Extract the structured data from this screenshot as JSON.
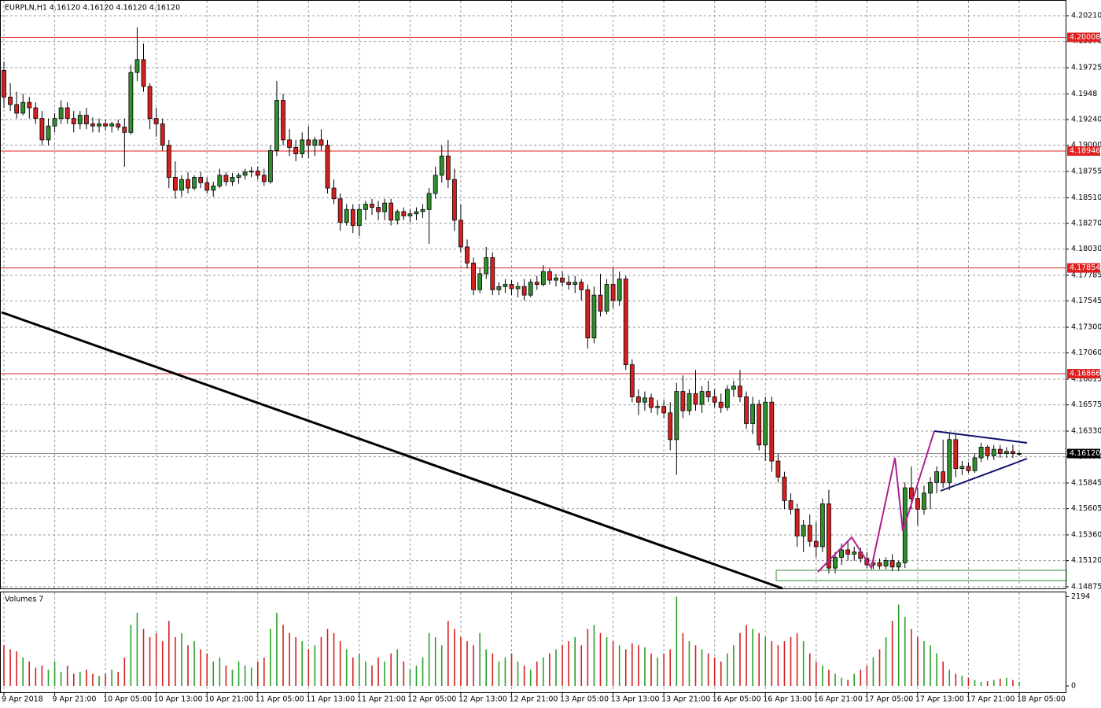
{
  "chart_data": {
    "type": "candlestick",
    "header": "EURPLN,H1  4.16120 4.16120 4.16120 4.16120",
    "up_color": "#2f8f2f",
    "down_color": "#d42020",
    "grid": true,
    "ylim": [
      4.1486,
      4.20357
    ],
    "yticks": [
      {
        "value": 4.2021,
        "label": "4.20210"
      },
      {
        "value": 4.1997,
        "label": "4.19970"
      },
      4.19725,
      4.1948,
      {
        "value": 4.1924,
        "label": "4.19240"
      },
      {
        "value": 4.19,
        "label": "4.19000"
      },
      4.18755,
      {
        "value": 4.1851,
        "label": "4.18510"
      },
      {
        "value": 4.1827,
        "label": "4.18270"
      },
      {
        "value": 4.1803,
        "label": "4.18030"
      },
      4.17785,
      4.17545,
      {
        "value": 4.173,
        "label": "4.17300"
      },
      {
        "value": 4.1706,
        "label": "4.17060"
      },
      4.16815,
      4.16575,
      {
        "value": 4.1633,
        "label": "4.16330"
      },
      {
        "value": 4.1609,
        "label": "4.16090"
      },
      4.15845,
      4.15605,
      {
        "value": 4.1536,
        "label": "4.15360"
      },
      {
        "value": 4.1512,
        "label": "4.15120"
      },
      4.14875
    ],
    "levels": [
      4.20008,
      4.18946,
      4.17854,
      4.16866
    ],
    "level_color": "#e02020",
    "current": {
      "value": 4.1612,
      "label": "4.16120"
    },
    "categories": [
      "9 Apr 2018",
      null,
      null,
      null,
      null,
      null,
      null,
      null,
      "9 Apr 21:00",
      null,
      null,
      null,
      null,
      null,
      null,
      null,
      "10 Apr 05:00",
      null,
      null,
      null,
      null,
      null,
      null,
      null,
      "10 Apr 13:00",
      null,
      null,
      null,
      null,
      null,
      null,
      null,
      "10 Apr 21:00",
      null,
      null,
      null,
      null,
      null,
      null,
      null,
      "11 Apr 05:00",
      null,
      null,
      null,
      null,
      null,
      null,
      null,
      "11 Apr 13:00",
      null,
      null,
      null,
      null,
      null,
      null,
      null,
      "11 Apr 21:00",
      null,
      null,
      null,
      null,
      null,
      null,
      null,
      "12 Apr 05:00",
      null,
      null,
      null,
      null,
      null,
      null,
      null,
      "12 Apr 13:00",
      null,
      null,
      null,
      null,
      null,
      null,
      null,
      "12 Apr 21:00",
      null,
      null,
      null,
      null,
      null,
      null,
      null,
      "13 Apr 05:00",
      null,
      null,
      null,
      null,
      null,
      null,
      null,
      "13 Apr 13:00",
      null,
      null,
      null,
      null,
      null,
      null,
      null,
      "13 Apr 21:00",
      null,
      null,
      null,
      null,
      null,
      null,
      null,
      "16 Apr 05:00",
      null,
      null,
      null,
      null,
      null,
      null,
      null,
      "16 Apr 13:00",
      null,
      null,
      null,
      null,
      null,
      null,
      null,
      "16 Apr 21:00",
      null,
      null,
      null,
      null,
      null,
      null,
      null,
      "17 Apr 05:00",
      null,
      null,
      null,
      null,
      null,
      null,
      null,
      "17 Apr 13:00",
      null,
      null,
      null,
      null,
      null,
      null,
      null,
      "17 Apr 21:00",
      null,
      null,
      null,
      null,
      null,
      null,
      null,
      "18 Apr 05:00"
    ],
    "ohlc": [
      [
        4.197,
        4.1978,
        4.1935,
        4.1945
      ],
      [
        4.1945,
        4.1958,
        4.1932,
        4.1938
      ],
      [
        4.1938,
        4.195,
        4.1925,
        4.193
      ],
      [
        4.193,
        4.1948,
        4.1928,
        4.194
      ],
      [
        4.194,
        4.1945,
        4.1925,
        4.1935
      ],
      [
        4.1935,
        4.194,
        4.192,
        4.1925
      ],
      [
        4.1925,
        4.1932,
        4.19,
        4.1905
      ],
      [
        4.1905,
        4.1925,
        4.19,
        4.1918
      ],
      [
        4.1918,
        4.193,
        4.1912,
        4.1925
      ],
      [
        4.1925,
        4.1942,
        4.192,
        4.1935
      ],
      [
        4.1935,
        4.194,
        4.192,
        4.1925
      ],
      [
        4.1925,
        4.1932,
        4.1912,
        4.192
      ],
      [
        4.192,
        4.1932,
        4.1915,
        4.1928
      ],
      [
        4.1928,
        4.1935,
        4.1915,
        4.192
      ],
      [
        4.192,
        4.1926,
        4.1912,
        4.1918
      ],
      [
        4.1918,
        4.1925,
        4.1912,
        4.192
      ],
      [
        4.192,
        4.1924,
        4.1914,
        4.1918
      ],
      [
        4.1918,
        4.1922,
        4.1912,
        4.192
      ],
      [
        4.192,
        4.1924,
        4.1914,
        4.1917
      ],
      [
        4.1917,
        4.1925,
        4.188,
        4.1912
      ],
      [
        4.1912,
        4.1975,
        4.191,
        4.1968
      ],
      [
        4.1968,
        4.201,
        4.196,
        4.198
      ],
      [
        4.198,
        4.1995,
        4.195,
        4.1955
      ],
      [
        4.1955,
        4.1958,
        4.1915,
        4.1925
      ],
      [
        4.1925,
        4.1935,
        4.1908,
        4.192
      ],
      [
        4.192,
        4.1925,
        4.1895,
        4.19
      ],
      [
        4.19,
        4.1905,
        4.186,
        4.187
      ],
      [
        4.187,
        4.1885,
        4.185,
        4.1858
      ],
      [
        4.1858,
        4.1872,
        4.1852,
        4.1868
      ],
      [
        4.1868,
        4.1875,
        4.1855,
        4.186
      ],
      [
        4.186,
        4.1872,
        4.1858,
        4.187
      ],
      [
        4.187,
        4.1875,
        4.186,
        4.1865
      ],
      [
        4.1865,
        4.187,
        4.1855,
        4.1858
      ],
      [
        4.1858,
        4.1866,
        4.1852,
        4.1862
      ],
      [
        4.1862,
        4.1878,
        4.186,
        4.1872
      ],
      [
        4.1872,
        4.1875,
        4.1862,
        4.1866
      ],
      [
        4.1866,
        4.1874,
        4.1862,
        4.187
      ],
      [
        4.187,
        4.1874,
        4.1864,
        4.1872
      ],
      [
        4.1872,
        4.1878,
        4.1868,
        4.1875
      ],
      [
        4.1875,
        4.188,
        4.187,
        4.1876
      ],
      [
        4.1876,
        4.188,
        4.1868,
        4.1872
      ],
      [
        4.1872,
        4.1878,
        4.1862,
        4.1866
      ],
      [
        4.1866,
        4.19,
        4.1864,
        4.1895
      ],
      [
        4.1895,
        4.196,
        4.189,
        4.1942
      ],
      [
        4.1942,
        4.1948,
        4.19,
        4.1905
      ],
      [
        4.1905,
        4.1915,
        4.189,
        4.1898
      ],
      [
        4.1898,
        4.1905,
        4.1885,
        4.1892
      ],
      [
        4.1892,
        4.1912,
        4.1888,
        4.1905
      ],
      [
        4.1905,
        4.1918,
        4.1888,
        4.19
      ],
      [
        4.19,
        4.1908,
        4.189,
        4.1905
      ],
      [
        4.1905,
        4.1915,
        4.1895,
        4.19
      ],
      [
        4.19,
        4.1905,
        4.1855,
        4.186
      ],
      [
        4.186,
        4.1868,
        4.1845,
        4.185
      ],
      [
        4.185,
        4.1855,
        4.182,
        4.1828
      ],
      [
        4.1828,
        4.1845,
        4.1825,
        4.184
      ],
      [
        4.184,
        4.1845,
        4.1818,
        4.1825
      ],
      [
        4.1825,
        4.1845,
        4.1815,
        4.184
      ],
      [
        4.184,
        4.1848,
        4.183,
        4.1845
      ],
      [
        4.1845,
        4.185,
        4.1835,
        4.1842
      ],
      [
        4.1842,
        4.1848,
        4.183,
        4.1838
      ],
      [
        4.1838,
        4.185,
        4.183,
        4.1846
      ],
      [
        4.1846,
        4.185,
        4.1825,
        4.183
      ],
      [
        4.183,
        4.184,
        4.1826,
        4.1838
      ],
      [
        4.1838,
        4.1842,
        4.183,
        4.1834
      ],
      [
        4.1834,
        4.184,
        4.1828,
        4.1836
      ],
      [
        4.1836,
        4.1842,
        4.183,
        4.1838
      ],
      [
        4.1838,
        4.1845,
        4.1832,
        4.184
      ],
      [
        4.184,
        4.186,
        4.1808,
        4.1855
      ],
      [
        4.1855,
        4.188,
        4.185,
        4.1872
      ],
      [
        4.1872,
        4.19,
        4.1865,
        4.189
      ],
      [
        4.189,
        4.1905,
        4.186,
        4.1868
      ],
      [
        4.1868,
        4.1878,
        4.182,
        4.183
      ],
      [
        4.183,
        4.1845,
        4.18,
        4.1805
      ],
      [
        4.1805,
        4.1812,
        4.1785,
        4.179
      ],
      [
        4.179,
        4.1795,
        4.176,
        4.1765
      ],
      [
        4.1765,
        4.1785,
        4.1762,
        4.178
      ],
      [
        4.178,
        4.1805,
        4.1775,
        4.1795
      ],
      [
        4.1795,
        4.18,
        4.176,
        4.1765
      ],
      [
        4.1765,
        4.1772,
        4.176,
        4.1768
      ],
      [
        4.1768,
        4.1775,
        4.1762,
        4.177
      ],
      [
        4.177,
        4.1774,
        4.176,
        4.1766
      ],
      [
        4.1766,
        4.1772,
        4.1758,
        4.1768
      ],
      [
        4.1768,
        4.1775,
        4.1755,
        4.176
      ],
      [
        4.176,
        4.1775,
        4.1758,
        4.1772
      ],
      [
        4.1772,
        4.1778,
        4.1765,
        4.177
      ],
      [
        4.177,
        4.1788,
        4.1768,
        4.1782
      ],
      [
        4.1782,
        4.1785,
        4.177,
        4.1774
      ],
      [
        4.1774,
        4.178,
        4.1768,
        4.1776
      ],
      [
        4.1776,
        4.1782,
        4.1768,
        4.1772
      ],
      [
        4.1772,
        4.1778,
        4.1765,
        4.177
      ],
      [
        4.177,
        4.1778,
        4.1762,
        4.1772
      ],
      [
        4.1772,
        4.1775,
        4.1755,
        4.1765
      ],
      [
        4.1765,
        4.177,
        4.171,
        4.172
      ],
      [
        4.172,
        4.1768,
        4.1715,
        4.176
      ],
      [
        4.176,
        4.178,
        4.174,
        4.1745
      ],
      [
        4.1745,
        4.1775,
        4.1742,
        4.177
      ],
      [
        4.177,
        4.1785,
        4.1748,
        4.1755
      ],
      [
        4.1755,
        4.1782,
        4.175,
        4.1775
      ],
      [
        4.1775,
        4.1778,
        4.169,
        4.1695
      ],
      [
        4.1695,
        4.17,
        4.166,
        4.1665
      ],
      [
        4.1665,
        4.1672,
        4.1648,
        4.166
      ],
      [
        4.166,
        4.167,
        4.1652,
        4.1664
      ],
      [
        4.1664,
        4.1668,
        4.165,
        4.1655
      ],
      [
        4.1655,
        4.1662,
        4.1648,
        4.1656
      ],
      [
        4.1656,
        4.1662,
        4.1645,
        4.165
      ],
      [
        4.165,
        4.166,
        4.1615,
        4.1625
      ],
      [
        4.1625,
        4.1678,
        4.1592,
        4.167
      ],
      [
        4.167,
        4.1685,
        4.1645,
        4.1652
      ],
      [
        4.1652,
        4.1672,
        4.1648,
        4.1668
      ],
      [
        4.1668,
        4.169,
        4.1652,
        4.1658
      ],
      [
        4.1658,
        4.1675,
        4.165,
        4.167
      ],
      [
        4.167,
        4.168,
        4.166,
        4.1665
      ],
      [
        4.1665,
        4.1672,
        4.1655,
        4.166
      ],
      [
        4.166,
        4.1668,
        4.165,
        4.1655
      ],
      [
        4.1655,
        4.1676,
        4.1652,
        4.1672
      ],
      [
        4.1672,
        4.168,
        4.1665,
        4.1675
      ],
      [
        4.1675,
        4.169,
        4.166,
        4.1665
      ],
      [
        4.1665,
        4.167,
        4.1635,
        4.164
      ],
      [
        4.164,
        4.1665,
        4.163,
        4.1658
      ],
      [
        4.1658,
        4.1662,
        4.1615,
        4.162
      ],
      [
        4.162,
        4.1665,
        4.1605,
        4.166
      ],
      [
        4.166,
        4.1665,
        4.1595,
        4.1605
      ],
      [
        4.1605,
        4.1612,
        4.1585,
        4.159
      ],
      [
        4.159,
        4.1595,
        4.156,
        4.1568
      ],
      [
        4.1568,
        4.1575,
        4.1555,
        4.156
      ],
      [
        4.156,
        4.1565,
        4.1525,
        4.1535
      ],
      [
        4.1535,
        4.155,
        4.152,
        4.1545
      ],
      [
        4.1545,
        4.1555,
        4.1525,
        4.153
      ],
      [
        4.153,
        4.1548,
        4.1515,
        4.1525
      ],
      [
        4.1525,
        4.157,
        4.152,
        4.1565
      ],
      [
        4.1565,
        4.1578,
        4.15,
        4.1505
      ],
      [
        4.1505,
        4.152,
        4.15,
        4.1515
      ],
      [
        4.1515,
        4.1528,
        4.1508,
        4.1522
      ],
      [
        4.1522,
        4.153,
        4.1512,
        4.1518
      ],
      [
        4.1518,
        4.1525,
        4.1512,
        4.152
      ],
      [
        4.152,
        4.1524,
        4.151,
        4.1514
      ],
      [
        4.1514,
        4.152,
        4.1505,
        4.1508
      ],
      [
        4.1508,
        4.1515,
        4.1504,
        4.151
      ],
      [
        4.151,
        4.1514,
        4.1504,
        4.1507
      ],
      [
        4.1507,
        4.1515,
        4.1504,
        4.1512
      ],
      [
        4.1512,
        4.1518,
        4.1502,
        4.1506
      ],
      [
        4.1506,
        4.1512,
        4.1502,
        4.151
      ],
      [
        4.151,
        4.1585,
        4.1505,
        4.158
      ],
      [
        4.158,
        4.16,
        4.156,
        4.157
      ],
      [
        4.157,
        4.158,
        4.1545,
        4.156
      ],
      [
        4.156,
        4.1582,
        4.1555,
        4.1575
      ],
      [
        4.1575,
        4.159,
        4.156,
        4.1585
      ],
      [
        4.1585,
        4.16,
        4.1575,
        4.1595
      ],
      [
        4.1595,
        4.1625,
        4.158,
        4.1585
      ],
      [
        4.1585,
        4.1632,
        4.1578,
        4.1625
      ],
      [
        4.1625,
        4.163,
        4.159,
        4.1598
      ],
      [
        4.1598,
        4.1605,
        4.1592,
        4.16
      ],
      [
        4.16,
        4.1604,
        4.1594,
        4.1596
      ],
      [
        4.1596,
        4.1612,
        4.1594,
        4.1608
      ],
      [
        4.1608,
        4.1622,
        4.1604,
        4.1618
      ],
      [
        4.1618,
        4.162,
        4.1606,
        4.161
      ],
      [
        4.161,
        4.162,
        4.1606,
        4.1616
      ],
      [
        4.1616,
        4.162,
        4.1608,
        4.1612
      ],
      [
        4.1612,
        4.1618,
        4.1608,
        4.1614
      ],
      [
        4.1614,
        4.162,
        4.1608,
        4.1612
      ],
      [
        4.1612,
        4.1614,
        4.161,
        4.1612
      ]
    ],
    "volume": {
      "label": "Volumes 7",
      "ylim": [
        0,
        2300
      ],
      "yticks": [
        0,
        2194
      ],
      "values": [
        1000,
        900,
        850,
        700,
        600,
        450,
        500,
        400,
        600,
        350,
        500,
        300,
        350,
        400,
        300,
        250,
        300,
        400,
        350,
        700,
        1500,
        1800,
        1400,
        1200,
        1300,
        1100,
        1600,
        1200,
        1300,
        1000,
        1100,
        900,
        800,
        600,
        700,
        500,
        400,
        600,
        500,
        450,
        600,
        700,
        1400,
        1800,
        1500,
        1300,
        1200,
        1100,
        900,
        1000,
        1200,
        1400,
        1300,
        1100,
        900,
        700,
        800,
        600,
        500,
        700,
        600,
        800,
        900,
        600,
        400,
        500,
        700,
        1300,
        1200,
        1000,
        1600,
        1400,
        1200,
        1100,
        1000,
        1300,
        900,
        800,
        600,
        700,
        800,
        600,
        500,
        400,
        600,
        700,
        800,
        900,
        1000,
        1100,
        1200,
        1000,
        1400,
        1500,
        1300,
        1200,
        1100,
        1000,
        900,
        1050,
        1000,
        950,
        800,
        700,
        800,
        900,
        2194,
        1300,
        1100,
        1000,
        900,
        800,
        700,
        600,
        800,
        1000,
        1300,
        1500,
        1400,
        1300,
        1200,
        1100,
        1000,
        1100,
        1200,
        1300,
        1100,
        800,
        600,
        500,
        400,
        300,
        200,
        150,
        300,
        400,
        500,
        700,
        900,
        1200,
        1600,
        2000,
        1700,
        1400,
        1200,
        1100,
        1000,
        800,
        600,
        400,
        300,
        250,
        200,
        150,
        100,
        120,
        150,
        180,
        200,
        150,
        100
      ]
    }
  }
}
